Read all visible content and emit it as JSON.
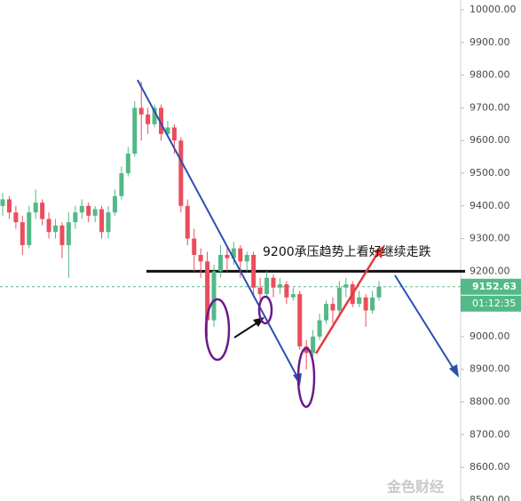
{
  "chart_data": {
    "type": "candlestick",
    "ylim": [
      8497,
      10030
    ],
    "yticks": [
      {
        "value": 10000,
        "label": "10000.00"
      },
      {
        "value": 9900,
        "label": "9900.00"
      },
      {
        "value": 9800,
        "label": "9800.00"
      },
      {
        "value": 9700,
        "label": "9700.00"
      },
      {
        "value": 9600,
        "label": "9600.00"
      },
      {
        "value": 9500,
        "label": "9500.00"
      },
      {
        "value": 9400,
        "label": "9400.00"
      },
      {
        "value": 9300,
        "label": "9300.00"
      },
      {
        "value": 9200,
        "label": "9200.00"
      },
      {
        "value": 9100,
        "label": "9100.00"
      },
      {
        "value": 9000,
        "label": "9000.00"
      },
      {
        "value": 8900,
        "label": "8900.00"
      },
      {
        "value": 8800,
        "label": "8800.00"
      },
      {
        "value": 8700,
        "label": "8700.00"
      },
      {
        "value": 8600,
        "label": "8600.00"
      },
      {
        "value": 8500,
        "label": "8500.00"
      }
    ],
    "up_color": "#53b987",
    "down_color": "#eb4d5c",
    "open": [
      9400,
      9420,
      9380,
      9350,
      9280,
      9380,
      9410,
      9360,
      9320,
      9340,
      9280,
      9350,
      9380,
      9400,
      9370,
      9390,
      9320,
      9380,
      9430,
      9500,
      9560,
      9700,
      9680,
      9650,
      9700,
      9620,
      9640,
      9600,
      9400,
      9300,
      9250,
      9230,
      9050,
      9200,
      9250,
      9240,
      9270,
      9230,
      9250,
      9150,
      9130,
      9180,
      9150,
      9160,
      9120,
      9130,
      8970,
      8950,
      9000,
      9050,
      9100,
      9080,
      9150,
      9160,
      9100,
      9120,
      9080,
      9120
    ],
    "high": [
      9440,
      9430,
      9400,
      9370,
      9400,
      9450,
      9420,
      9380,
      9360,
      9350,
      9380,
      9400,
      9420,
      9410,
      9400,
      9400,
      9400,
      9450,
      9520,
      9580,
      9720,
      9780,
      9700,
      9710,
      9710,
      9660,
      9650,
      9610,
      9420,
      9330,
      9270,
      9260,
      9220,
      9280,
      9280,
      9290,
      9280,
      9260,
      9260,
      9180,
      9200,
      9190,
      9180,
      9170,
      9150,
      9140,
      8990,
      9020,
      9070,
      9110,
      9120,
      9170,
      9180,
      9170,
      9140,
      9130,
      9140,
      9170
    ],
    "low": [
      9370,
      9360,
      9330,
      9250,
      9270,
      9360,
      9340,
      9300,
      9300,
      9240,
      9180,
      9330,
      9360,
      9350,
      9350,
      9300,
      9300,
      9370,
      9420,
      9490,
      9550,
      9600,
      9620,
      9640,
      9600,
      9610,
      9560,
      9380,
      9280,
      9200,
      9180,
      9000,
      9030,
      9180,
      9200,
      9220,
      9180,
      9200,
      9120,
      9100,
      9120,
      9120,
      9130,
      9100,
      9110,
      8960,
      8900,
      8940,
      8990,
      9040,
      9040,
      9070,
      9120,
      9090,
      9090,
      9030,
      9070,
      9110
    ],
    "close": [
      9420,
      9380,
      9350,
      9280,
      9380,
      9410,
      9360,
      9320,
      9340,
      9280,
      9350,
      9380,
      9400,
      9370,
      9390,
      9320,
      9380,
      9430,
      9500,
      9560,
      9700,
      9680,
      9650,
      9700,
      9620,
      9640,
      9600,
      9400,
      9300,
      9250,
      9230,
      9050,
      9200,
      9250,
      9240,
      9270,
      9230,
      9250,
      9150,
      9130,
      9180,
      9150,
      9160,
      9120,
      9130,
      8970,
      8950,
      9000,
      9050,
      9100,
      9080,
      9150,
      9160,
      9100,
      9120,
      9080,
      9120,
      9152.63
    ],
    "last_price": 9152.63,
    "countdown": "01:12:35",
    "level": 9200,
    "annotation": "9200承压趋势上看好继续走跌",
    "watermark": "金色财经"
  }
}
